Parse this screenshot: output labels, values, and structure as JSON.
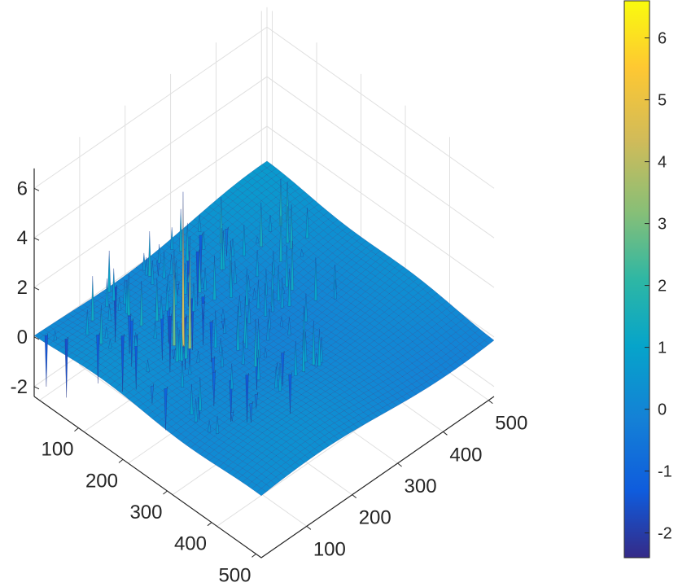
{
  "chart_data": {
    "type": "surface",
    "view": "3d-isometric",
    "colormap": "parula",
    "grid": true,
    "colorbar": {
      "position": "right",
      "limits": [
        -2.4,
        6.6
      ],
      "ticks": [
        "-2",
        "-1",
        "0",
        "1",
        "2",
        "3",
        "4",
        "5",
        "6"
      ]
    },
    "x_axis": {
      "range": [
        1,
        512
      ],
      "ticks": [
        "100",
        "200",
        "300",
        "400",
        "500"
      ]
    },
    "y_axis": {
      "range": [
        1,
        512
      ],
      "ticks": [
        "100",
        "200",
        "300",
        "400",
        "500"
      ]
    },
    "z_axis": {
      "range": [
        -2.4,
        6.6
      ],
      "ticks": [
        "-2",
        "0",
        "2",
        "4",
        "6"
      ]
    },
    "surface_summary": {
      "baseline": 0,
      "max": 6.6,
      "min": -2.4
    }
  },
  "colors": {
    "background": "#ffffff",
    "grid": "#e0e0e0",
    "axis": "#262626",
    "surface_base": "#2f63d9",
    "surface_dark": "#2a3ea8",
    "peak_highlight": "#f4b83a"
  }
}
